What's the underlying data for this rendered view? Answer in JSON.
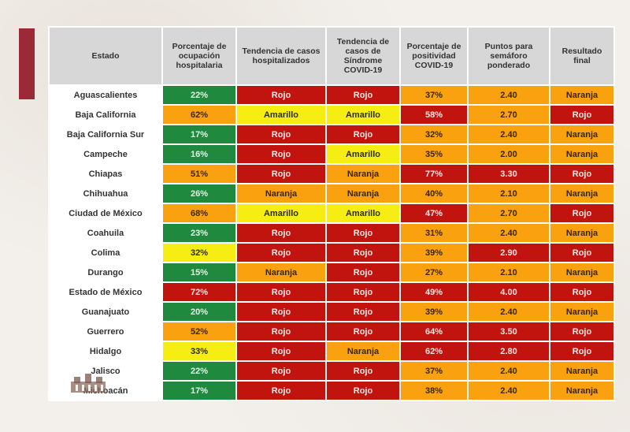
{
  "table": {
    "headers": [
      "Estado",
      "Porcentaje de ocupación hospitalaria",
      "Tendencia de casos hospitalizados",
      "Tendencia de casos de Síndrome COVID-19",
      "Porcentaje de positividad COVID-19",
      "Puntos para semáforo ponderado",
      "Resultado final"
    ],
    "rows": [
      {
        "estado": "Aguascalientes",
        "ocupacion": "22%",
        "tend_hosp": "Rojo",
        "tend_sind": "Rojo",
        "positividad": "37%",
        "puntos": "2.40",
        "resultado": "Naranja"
      },
      {
        "estado": "Baja California",
        "ocupacion": "62%",
        "tend_hosp": "Amarillo",
        "tend_sind": "Amarillo",
        "positividad": "58%",
        "puntos": "2.70",
        "resultado": "Rojo"
      },
      {
        "estado": "Baja California Sur",
        "ocupacion": "17%",
        "tend_hosp": "Rojo",
        "tend_sind": "Rojo",
        "positividad": "32%",
        "puntos": "2.40",
        "resultado": "Naranja"
      },
      {
        "estado": "Campeche",
        "ocupacion": "16%",
        "tend_hosp": "Rojo",
        "tend_sind": "Amarillo",
        "positividad": "35%",
        "puntos": "2.00",
        "resultado": "Naranja"
      },
      {
        "estado": "Chiapas",
        "ocupacion": "51%",
        "tend_hosp": "Rojo",
        "tend_sind": "Naranja",
        "positividad": "77%",
        "puntos": "3.30",
        "resultado": "Rojo"
      },
      {
        "estado": "Chihuahua",
        "ocupacion": "26%",
        "tend_hosp": "Naranja",
        "tend_sind": "Naranja",
        "positividad": "40%",
        "puntos": "2.10",
        "resultado": "Naranja"
      },
      {
        "estado": "Ciudad de México",
        "ocupacion": "68%",
        "tend_hosp": "Amarillo",
        "tend_sind": "Amarillo",
        "positividad": "47%",
        "puntos": "2.70",
        "resultado": "Rojo"
      },
      {
        "estado": "Coahuila",
        "ocupacion": "23%",
        "tend_hosp": "Rojo",
        "tend_sind": "Rojo",
        "positividad": "31%",
        "puntos": "2.40",
        "resultado": "Naranja"
      },
      {
        "estado": "Colima",
        "ocupacion": "32%",
        "tend_hosp": "Rojo",
        "tend_sind": "Rojo",
        "positividad": "39%",
        "puntos": "2.90",
        "resultado": "Rojo"
      },
      {
        "estado": "Durango",
        "ocupacion": "15%",
        "tend_hosp": "Naranja",
        "tend_sind": "Rojo",
        "positividad": "27%",
        "puntos": "2.10",
        "resultado": "Naranja"
      },
      {
        "estado": "Estado de México",
        "ocupacion": "72%",
        "tend_hosp": "Rojo",
        "tend_sind": "Rojo",
        "positividad": "49%",
        "puntos": "4.00",
        "resultado": "Rojo"
      },
      {
        "estado": "Guanajuato",
        "ocupacion": "20%",
        "tend_hosp": "Rojo",
        "tend_sind": "Rojo",
        "positividad": "39%",
        "puntos": "2.40",
        "resultado": "Naranja"
      },
      {
        "estado": "Guerrero",
        "ocupacion": "52%",
        "tend_hosp": "Rojo",
        "tend_sind": "Rojo",
        "positividad": "64%",
        "puntos": "3.50",
        "resultado": "Rojo"
      },
      {
        "estado": "Hidalgo",
        "ocupacion": "33%",
        "tend_hosp": "Rojo",
        "tend_sind": "Naranja",
        "positividad": "62%",
        "puntos": "2.80",
        "resultado": "Rojo"
      },
      {
        "estado": "Jalisco",
        "ocupacion": "22%",
        "tend_hosp": "Rojo",
        "tend_sind": "Rojo",
        "positividad": "37%",
        "puntos": "2.40",
        "resultado": "Naranja"
      },
      {
        "estado": "Michoacán",
        "ocupacion": "17%",
        "tend_hosp": "Rojo",
        "tend_sind": "Rojo",
        "positividad": "38%",
        "puntos": "2.40",
        "resultado": "Naranja"
      }
    ],
    "cell_colors": [
      [
        "verde",
        "rojo",
        "rojo",
        "naranja",
        "naranja",
        "naranja"
      ],
      [
        "naranja",
        "amarillo",
        "amarillo",
        "rojo",
        "naranja",
        "rojo"
      ],
      [
        "verde",
        "rojo",
        "rojo",
        "naranja",
        "naranja",
        "naranja"
      ],
      [
        "verde",
        "rojo",
        "amarillo",
        "naranja",
        "naranja",
        "naranja"
      ],
      [
        "naranja",
        "rojo",
        "naranja",
        "rojo",
        "rojo",
        "rojo"
      ],
      [
        "verde",
        "naranja",
        "naranja",
        "naranja",
        "naranja",
        "naranja"
      ],
      [
        "naranja",
        "amarillo",
        "amarillo",
        "rojo",
        "naranja",
        "rojo"
      ],
      [
        "verde",
        "rojo",
        "rojo",
        "naranja",
        "naranja",
        "naranja"
      ],
      [
        "amarillo",
        "rojo",
        "rojo",
        "naranja",
        "rojo",
        "rojo"
      ],
      [
        "verde",
        "naranja",
        "rojo",
        "naranja",
        "naranja",
        "naranja"
      ],
      [
        "rojo",
        "rojo",
        "rojo",
        "rojo",
        "rojo",
        "rojo"
      ],
      [
        "verde",
        "rojo",
        "rojo",
        "naranja",
        "naranja",
        "naranja"
      ],
      [
        "naranja",
        "rojo",
        "rojo",
        "rojo",
        "rojo",
        "rojo"
      ],
      [
        "amarillo",
        "rojo",
        "naranja",
        "rojo",
        "rojo",
        "rojo"
      ],
      [
        "verde",
        "rojo",
        "rojo",
        "naranja",
        "naranja",
        "naranja"
      ],
      [
        "verde",
        "rojo",
        "rojo",
        "naranja",
        "naranja",
        "naranja"
      ]
    ]
  },
  "colors": {
    "verde": "#1f8a3d",
    "amarillo": "#f6ee12",
    "naranja": "#f9a10f",
    "rojo": "#c1140e",
    "stripe": "#9b2a36",
    "header_bg": "#d7d7d7"
  },
  "decor": {
    "left_stripe": "maroon-stripe",
    "bottom_logo": "building-emblem-icon"
  }
}
